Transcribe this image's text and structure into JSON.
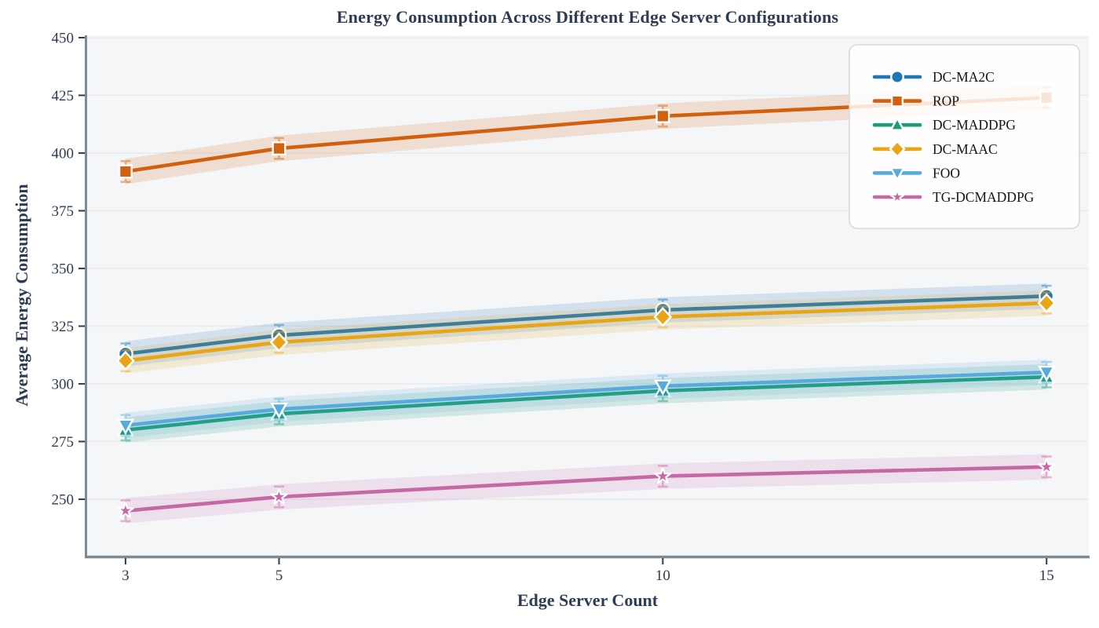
{
  "chart_data": {
    "type": "line",
    "title": "Energy Consumption Across Different Edge Server Configurations",
    "xlabel": "Edge Server Count",
    "ylabel": "Average Energy Consumption",
    "x": [
      3,
      5,
      10,
      15
    ],
    "xtick_labels": [
      "3",
      "5",
      "10",
      "15"
    ],
    "yticks": [
      250,
      275,
      300,
      325,
      350,
      375,
      400,
      425,
      450
    ],
    "xlim": [
      2.5,
      15.55
    ],
    "ylim": [
      225.5,
      451
    ],
    "grid": "horizontal-only",
    "legend_position": "upper-right",
    "series": [
      {
        "name": "DC-MA2C",
        "marker": "circle",
        "color": "#1f77b4",
        "values": [
          313,
          321,
          332,
          338
        ],
        "band": 5.5,
        "err": 4.5
      },
      {
        "name": "ROP",
        "marker": "square",
        "color": "#d2600e",
        "values": [
          392,
          402,
          416,
          424
        ],
        "band": 5.5,
        "err": 4.5
      },
      {
        "name": "DC-MADDPG",
        "marker": "triangle-up",
        "color": "#1b9e77",
        "values": [
          280,
          287,
          297,
          303
        ],
        "band": 5.5,
        "err": 4.5
      },
      {
        "name": "DC-MAAC",
        "marker": "diamond",
        "color": "#e8a617",
        "values": [
          310,
          318,
          329,
          335
        ],
        "band": 5.5,
        "err": 4.5
      },
      {
        "name": "FOO",
        "marker": "triangle-down",
        "color": "#58aadd",
        "values": [
          282,
          289,
          299,
          305
        ],
        "band": 5.5,
        "err": 4.5
      },
      {
        "name": "TG-DCMADDPG",
        "marker": "star",
        "color": "#c768a6",
        "values": [
          245,
          251,
          260,
          264
        ],
        "band": 5.5,
        "err": 4.5
      }
    ],
    "colors": {
      "text": "#2d3c52",
      "plot_bg": "#f5f6f8",
      "grid": "#e8ebee",
      "spine": "#7e8a94",
      "tick": "#2d3c52",
      "legend_bg": "#ffffff",
      "legend_border": "#d9d9d9",
      "legend_text": "#141414"
    }
  }
}
